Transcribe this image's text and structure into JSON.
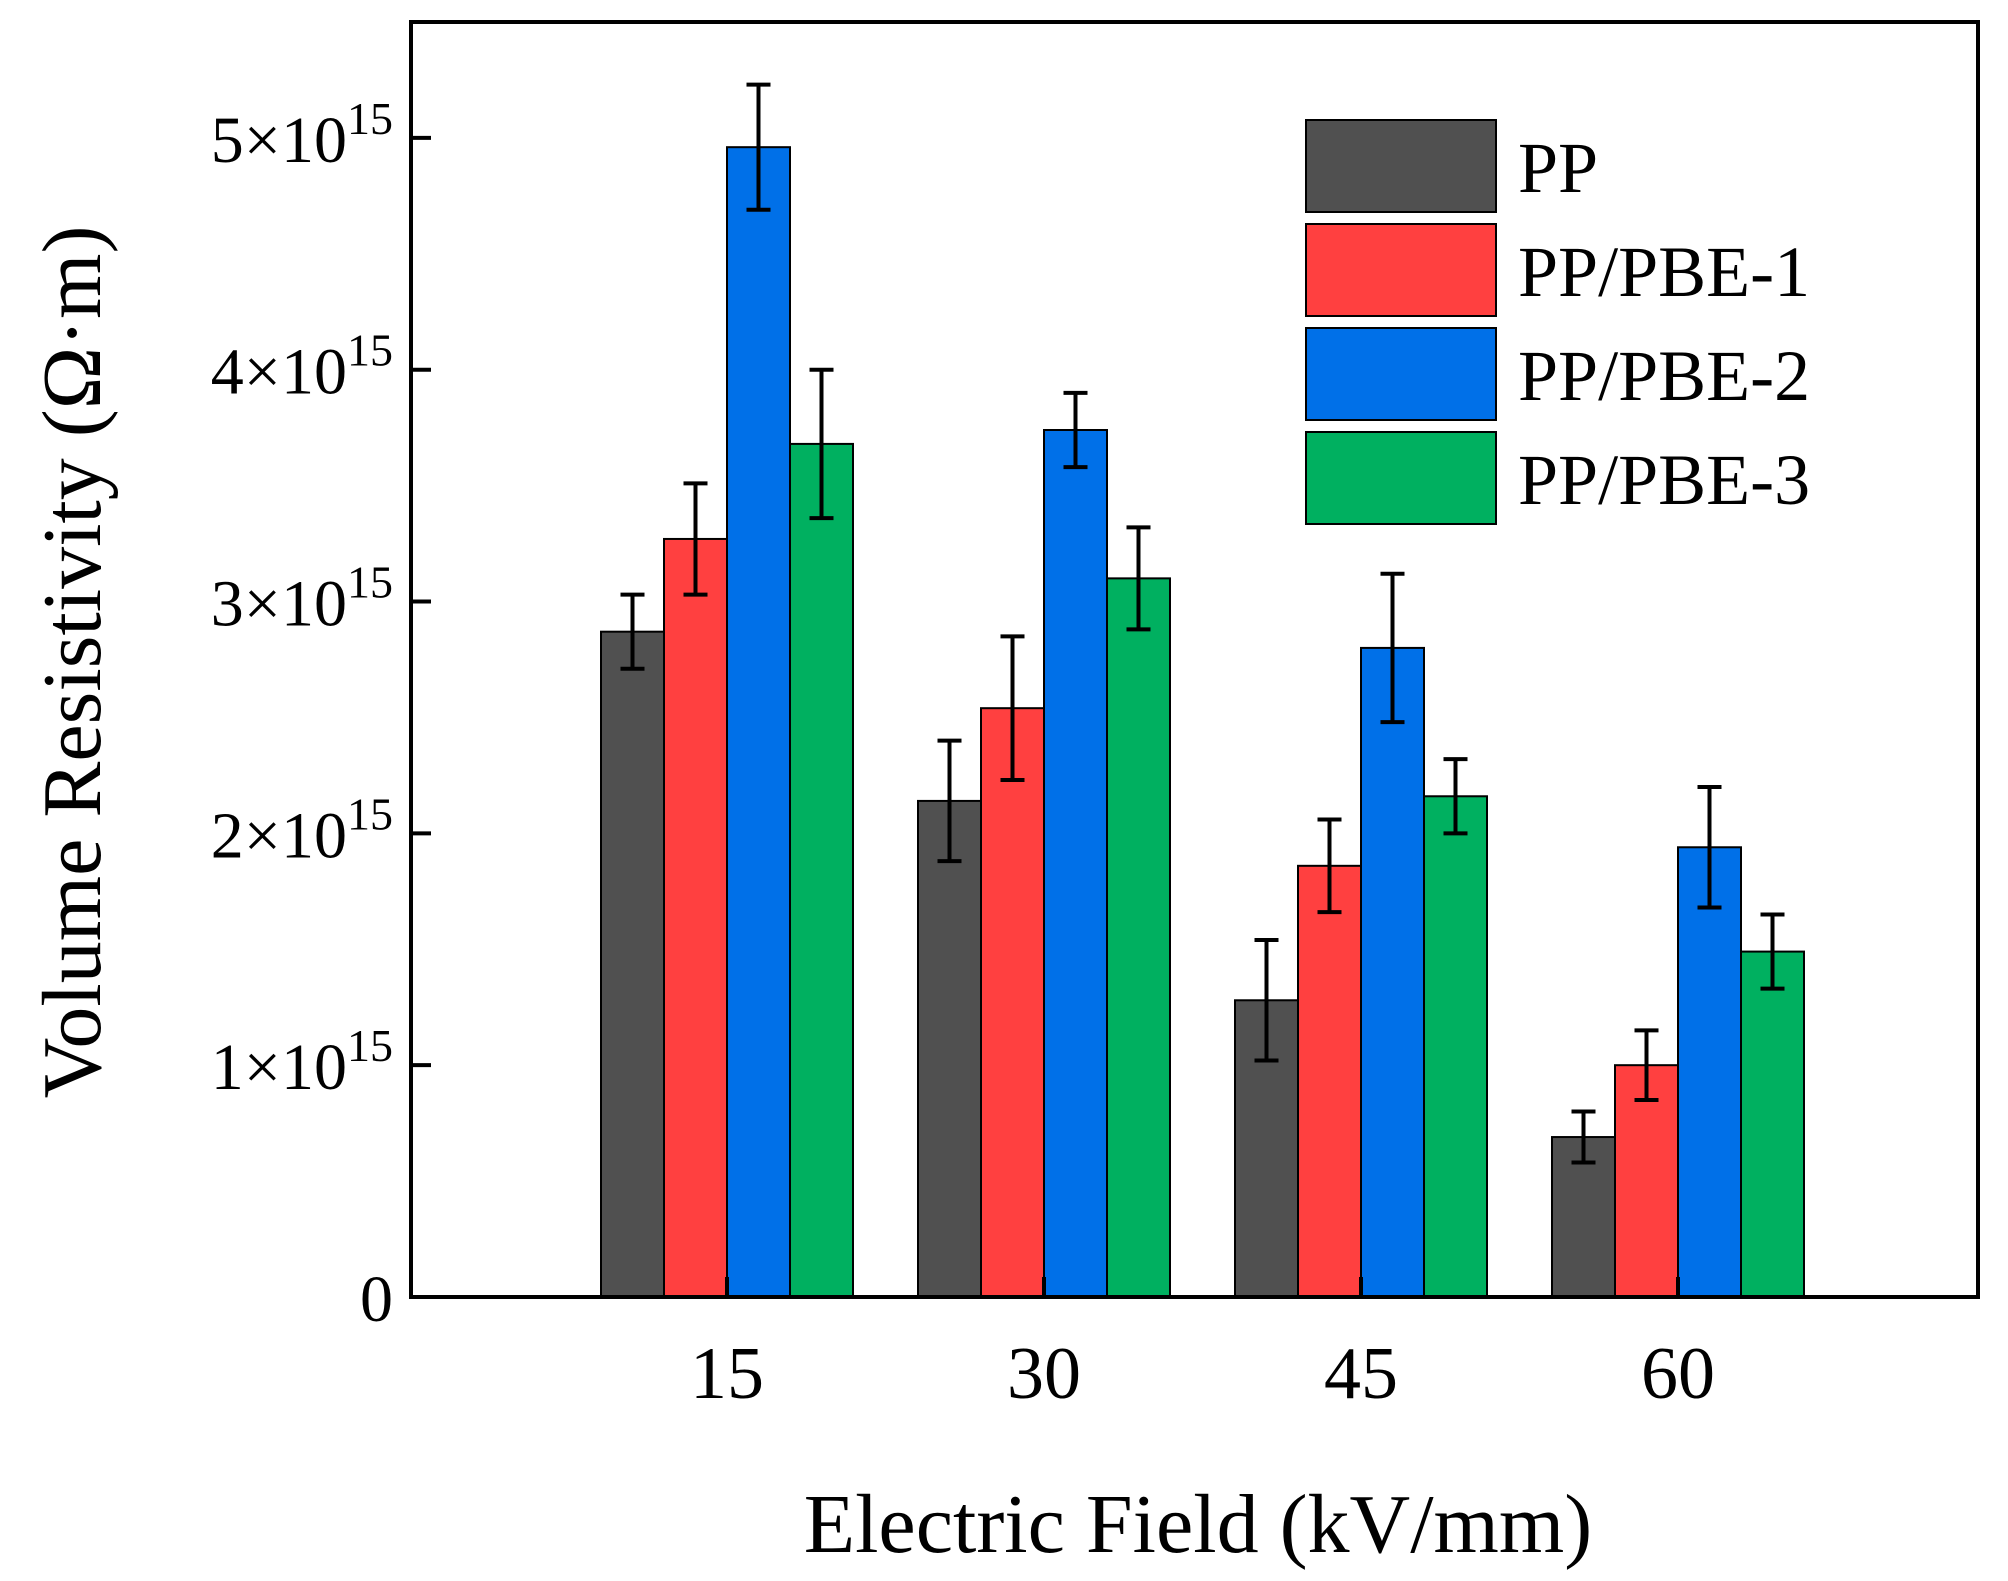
{
  "chart_data": {
    "type": "bar",
    "title": "",
    "xlabel": "Electric Field (kV/mm)",
    "ylabel": "Volume Resistivity (Ω·m)",
    "categories": [
      "15",
      "30",
      "45",
      "60"
    ],
    "ylim": [
      0,
      5500000000000000.0
    ],
    "yticks": [
      {
        "value": 0,
        "label": "0",
        "mantissa": "",
        "exponent": ""
      },
      {
        "value": 1000000000000000.0,
        "label": "1×10^15",
        "mantissa": "1×10",
        "exponent": "15"
      },
      {
        "value": 2000000000000000.0,
        "label": "2×10^15",
        "mantissa": "2×10",
        "exponent": "15"
      },
      {
        "value": 3000000000000000.0,
        "label": "3×10^15",
        "mantissa": "3×10",
        "exponent": "15"
      },
      {
        "value": 4000000000000000.0,
        "label": "4×10^15",
        "mantissa": "4×10",
        "exponent": "15"
      },
      {
        "value": 5000000000000000.0,
        "label": "5×10^15",
        "mantissa": "5×10",
        "exponent": "15"
      }
    ],
    "grid": false,
    "legend_position": "top-right",
    "series": [
      {
        "name": "PP",
        "color": "#505050",
        "values": [
          2870000000000000.0,
          2140000000000000.0,
          1280000000000000.0,
          690000000000000.0
        ],
        "errors": [
          160000000000000.0,
          260000000000000.0,
          260000000000000.0,
          110000000000000.0
        ]
      },
      {
        "name": "PP/PBE-1",
        "color": "#ff4040",
        "values": [
          3270000000000000.0,
          2540000000000000.0,
          1860000000000000.0,
          1000000000000000.0
        ],
        "errors": [
          240000000000000.0,
          310000000000000.0,
          200000000000000.0,
          150000000000000.0
        ]
      },
      {
        "name": "PP/PBE-2",
        "color": "#0070e8",
        "values": [
          4960000000000000.0,
          3740000000000000.0,
          2800000000000000.0,
          1940000000000000.0
        ],
        "errors": [
          270000000000000.0,
          160000000000000.0,
          320000000000000.0,
          260000000000000.0
        ]
      },
      {
        "name": "PP/PBE-3",
        "color": "#00b060",
        "values": [
          3680000000000000.0,
          3100000000000000.0,
          2160000000000000.0,
          1490000000000000.0
        ],
        "errors": [
          320000000000000.0,
          220000000000000.0,
          160000000000000.0,
          160000000000000.0
        ]
      }
    ]
  }
}
